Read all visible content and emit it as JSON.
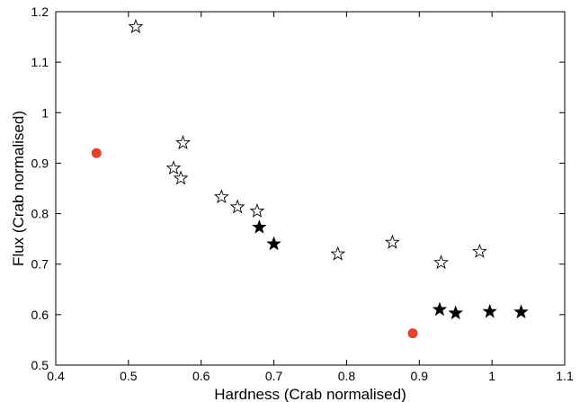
{
  "chart_data": {
    "type": "scatter",
    "title": "",
    "xlabel": "Hardness (Crab normalised)",
    "ylabel": "Flux (Crab normalised)",
    "xlim": [
      0.4,
      1.1
    ],
    "ylim": [
      0.5,
      1.2
    ],
    "xticks": [
      0.4,
      0.5,
      0.6,
      0.7,
      0.8,
      0.9,
      1.0,
      1.1
    ],
    "yticks": [
      0.5,
      0.6,
      0.7,
      0.8,
      0.9,
      1.0,
      1.1,
      1.2
    ],
    "xtick_labels": [
      "0.4",
      "0.5",
      "0.6",
      "0.7",
      "0.8",
      "0.9",
      "1",
      "1.1"
    ],
    "ytick_labels": [
      "0.5",
      "0.6",
      "0.7",
      "0.8",
      "0.9",
      "1",
      "1.1",
      "1.2"
    ],
    "grid": false,
    "legend": "none",
    "series": [
      {
        "marker": "open-star",
        "color": "#000000",
        "points": [
          {
            "x": 0.51,
            "y": 1.17
          },
          {
            "x": 0.575,
            "y": 0.94
          },
          {
            "x": 0.562,
            "y": 0.89
          },
          {
            "x": 0.572,
            "y": 0.87
          },
          {
            "x": 0.628,
            "y": 0.833
          },
          {
            "x": 0.65,
            "y": 0.813
          },
          {
            "x": 0.677,
            "y": 0.805
          },
          {
            "x": 0.788,
            "y": 0.72
          },
          {
            "x": 0.863,
            "y": 0.743
          },
          {
            "x": 0.93,
            "y": 0.703
          },
          {
            "x": 0.983,
            "y": 0.725
          }
        ]
      },
      {
        "marker": "filled-star",
        "color": "#000000",
        "points": [
          {
            "x": 0.68,
            "y": 0.773
          },
          {
            "x": 0.7,
            "y": 0.74
          },
          {
            "x": 0.928,
            "y": 0.61
          },
          {
            "x": 0.95,
            "y": 0.603
          },
          {
            "x": 0.997,
            "y": 0.606
          },
          {
            "x": 1.04,
            "y": 0.605
          }
        ]
      },
      {
        "marker": "filled-circle",
        "color": "#E8402A",
        "points": [
          {
            "x": 0.456,
            "y": 0.92
          },
          {
            "x": 0.891,
            "y": 0.563
          }
        ]
      }
    ]
  }
}
